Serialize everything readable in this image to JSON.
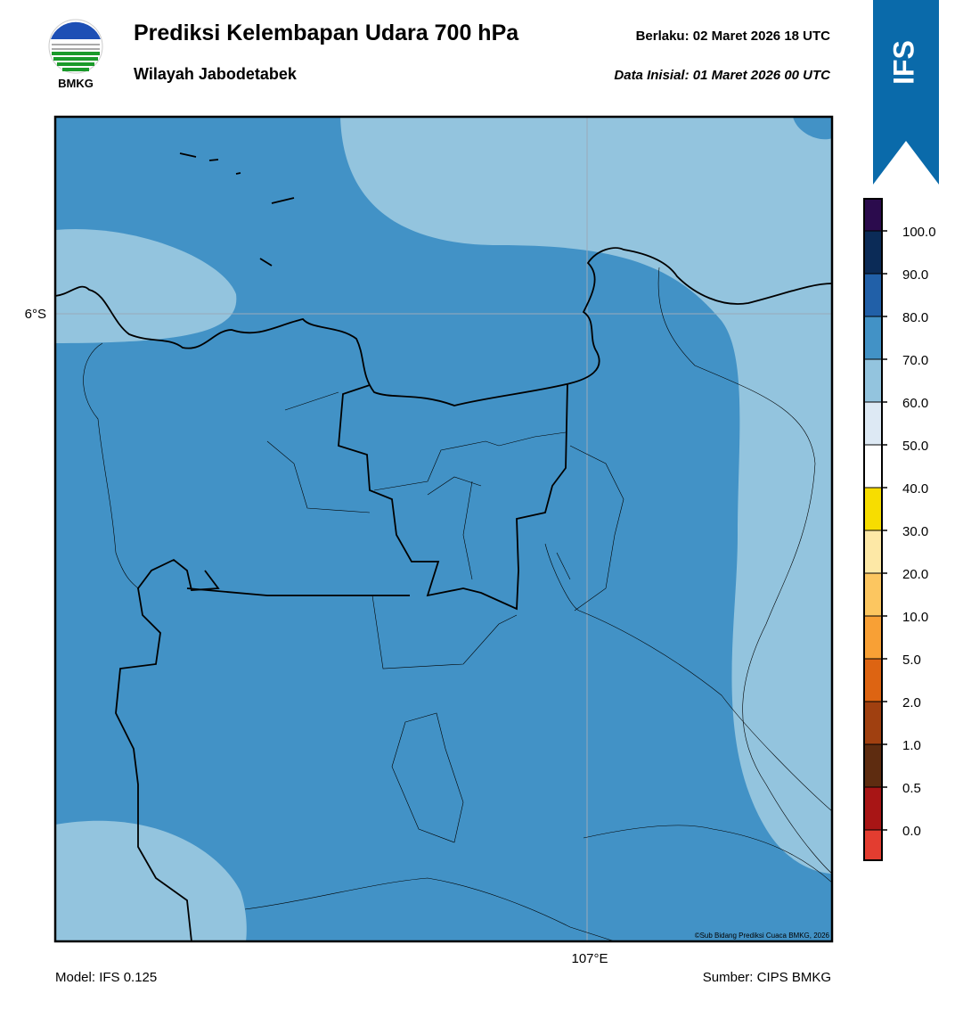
{
  "header": {
    "title": "Prediksi Kelembapan Udara 700 hPa",
    "subtitle": "Wilayah Jabodetabek",
    "valid_label": "Berlaku:  02 Maret 2026 18 UTC",
    "init_label": "Data Inisial:  01 Maret 2026 00 UTC",
    "logo_text": "BMKG",
    "badge": "IFS"
  },
  "map": {
    "lat_label": "6°S",
    "lon_label": "107°E",
    "credit": "©Sub Bidang Prediksi Cuaca BMKG, 2026"
  },
  "colorbar": {
    "colors": [
      "#2b0b4d",
      "#0b2b57",
      "#2160a8",
      "#4292c6",
      "#93c4de",
      "#dde9f4",
      "#ffffff",
      "#f7dd00",
      "#fde8a6",
      "#fcc660",
      "#f8a035",
      "#dd6412",
      "#a04010",
      "#5e2c10",
      "#a81515",
      "#e33d30"
    ],
    "ticks": [
      "100.0",
      "90.0",
      "80.0",
      "70.0",
      "60.0",
      "50.0",
      "40.0",
      "30.0",
      "20.0",
      "10.0",
      "5.0",
      "2.0",
      "1.0",
      "0.5",
      "0.0"
    ]
  },
  "footer": {
    "model": "Model: IFS 0.125",
    "source": "Sumber: CIPS BMKG"
  }
}
